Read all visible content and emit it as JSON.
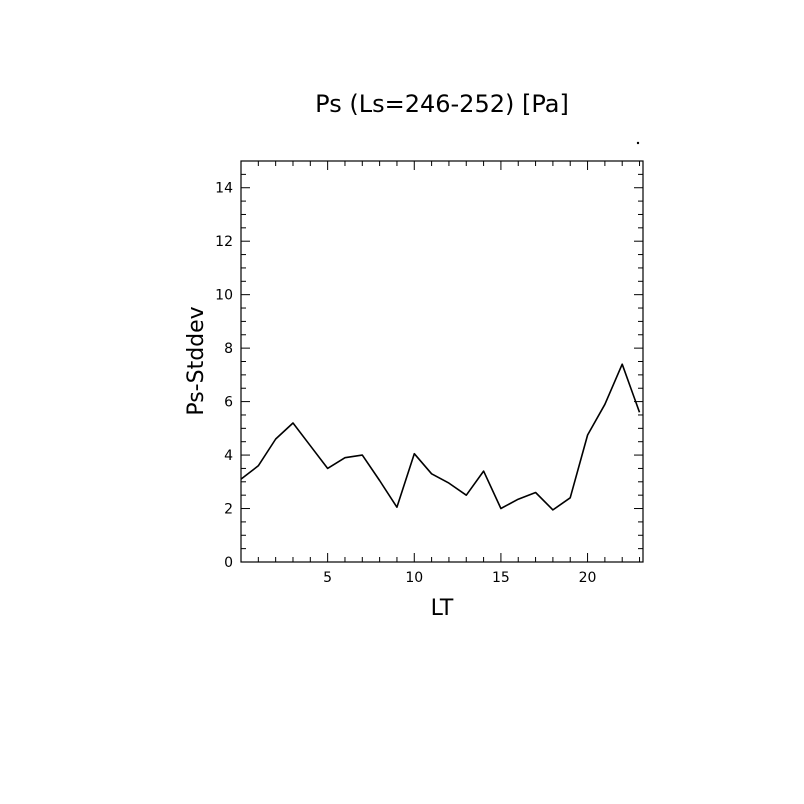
{
  "chart_data": {
    "type": "line",
    "title": "Ps (Ls=246-252) [Pa]",
    "xlabel": "LT",
    "ylabel": "Ps-Stddev",
    "xlim": [
      0.0,
      23.2
    ],
    "ylim": [
      0,
      15
    ],
    "x_ticks": [
      5,
      10,
      15,
      20
    ],
    "y_ticks": [
      0,
      2,
      4,
      6,
      8,
      10,
      12,
      14
    ],
    "x_minor_step": 1,
    "y_minor_step": 0.5,
    "grid": false,
    "series": [
      {
        "x": [
          0.0,
          1.0,
          2.0,
          3.0,
          4.0,
          5.0,
          6.0,
          7.0,
          8.0,
          9.0,
          10.0,
          11.0,
          12.0,
          13.0,
          14.0,
          15.0,
          16.0,
          17.0,
          18.0,
          19.0,
          20.0,
          21.0,
          22.0,
          23.0
        ],
        "values": [
          3.1,
          3.6,
          4.6,
          5.2,
          4.35,
          3.5,
          3.9,
          4.0,
          3.05,
          2.05,
          4.05,
          3.3,
          2.95,
          2.5,
          3.4,
          2.0,
          2.35,
          2.6,
          1.95,
          2.4,
          4.75,
          5.9,
          7.4,
          5.6
        ],
        "color": "#000000"
      }
    ]
  }
}
